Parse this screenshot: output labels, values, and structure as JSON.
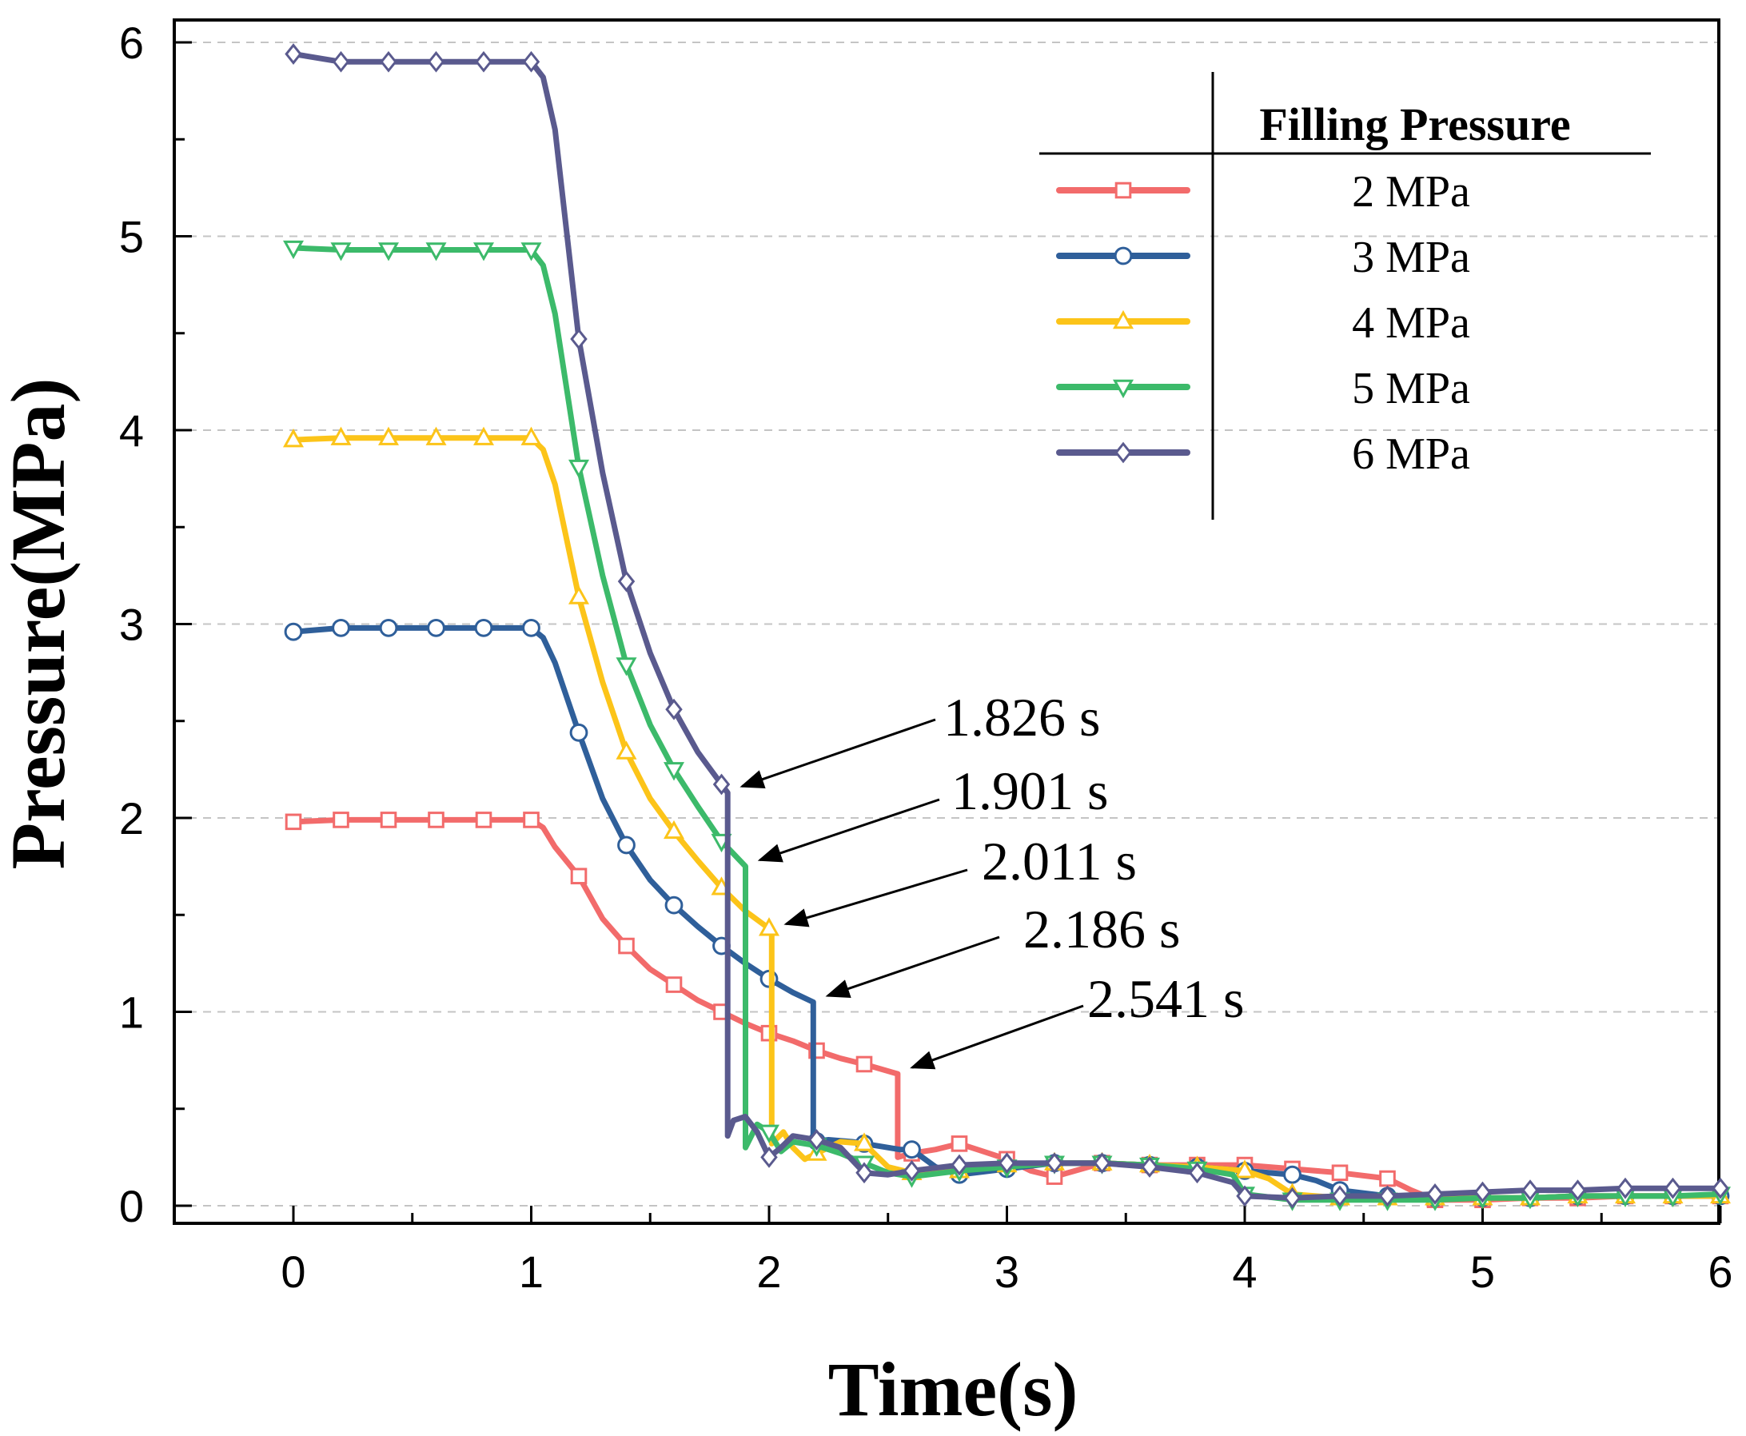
{
  "chart_data": {
    "type": "line",
    "title": "",
    "xlabel": "Time(s)",
    "ylabel": "Pressure(MPa)",
    "xlim": [
      -0.5,
      6
    ],
    "ylim": [
      -0.1,
      6.1
    ],
    "xticks": [
      0,
      1,
      2,
      3,
      4,
      5,
      6
    ],
    "yticks": [
      0,
      1,
      2,
      3,
      4,
      5,
      6
    ],
    "grid": "horizontal dashed",
    "legend": {
      "title": "Filling Pressure",
      "position": "top-right"
    },
    "series": [
      {
        "name": "2 MPa",
        "color": "#f26b6b",
        "marker": "square",
        "drop_time": 2.541,
        "x": [
          0,
          0.2,
          0.4,
          0.6,
          0.8,
          1.0,
          1.05,
          1.1,
          1.2,
          1.3,
          1.4,
          1.5,
          1.6,
          1.7,
          1.8,
          1.9,
          2.0,
          2.1,
          2.2,
          2.3,
          2.4,
          2.541,
          2.541,
          2.6,
          2.7,
          2.8,
          2.9,
          3.0,
          3.1,
          3.2,
          3.4,
          3.6,
          3.8,
          4.0,
          4.2,
          4.4,
          4.6,
          4.7,
          4.8,
          5.0,
          5.2,
          5.4,
          5.6,
          5.8,
          6.0
        ],
        "y": [
          1.98,
          1.99,
          1.99,
          1.99,
          1.99,
          1.99,
          1.95,
          1.85,
          1.7,
          1.48,
          1.34,
          1.22,
          1.14,
          1.06,
          1.0,
          0.94,
          0.89,
          0.85,
          0.8,
          0.76,
          0.73,
          0.68,
          0.25,
          0.27,
          0.29,
          0.32,
          0.28,
          0.24,
          0.18,
          0.15,
          0.22,
          0.21,
          0.21,
          0.21,
          0.19,
          0.17,
          0.14,
          0.08,
          0.03,
          0.03,
          0.04,
          0.04,
          0.05,
          0.05,
          0.05
        ],
        "markers_x": [
          0,
          0.2,
          0.4,
          0.6,
          0.8,
          1.0,
          1.2,
          1.4,
          1.6,
          1.8,
          2.0,
          2.2,
          2.4,
          2.6,
          2.8,
          3.0,
          3.2,
          3.4,
          3.6,
          3.8,
          4.0,
          4.2,
          4.4,
          4.6,
          4.8,
          5.0,
          5.2,
          5.4,
          5.6,
          5.8,
          6.0
        ]
      },
      {
        "name": "3 MPa",
        "color": "#2f5f9a",
        "marker": "circle",
        "drop_time": 2.186,
        "x": [
          0,
          0.2,
          0.4,
          0.6,
          0.8,
          1.0,
          1.05,
          1.1,
          1.2,
          1.3,
          1.4,
          1.5,
          1.6,
          1.7,
          1.8,
          1.9,
          2.0,
          2.1,
          2.186,
          2.186,
          2.25,
          2.35,
          2.45,
          2.55,
          2.6,
          2.7,
          2.8,
          3.0,
          3.2,
          3.4,
          3.6,
          3.8,
          4.0,
          4.2,
          4.3,
          4.4,
          4.6,
          4.8,
          5.0,
          5.2,
          5.4,
          5.6,
          5.8,
          6.0
        ],
        "y": [
          2.96,
          2.98,
          2.98,
          2.98,
          2.98,
          2.98,
          2.93,
          2.8,
          2.44,
          2.1,
          1.86,
          1.68,
          1.55,
          1.44,
          1.34,
          1.25,
          1.17,
          1.1,
          1.05,
          0.33,
          0.34,
          0.33,
          0.31,
          0.29,
          0.29,
          0.2,
          0.16,
          0.19,
          0.22,
          0.22,
          0.21,
          0.2,
          0.18,
          0.16,
          0.13,
          0.08,
          0.05,
          0.04,
          0.04,
          0.04,
          0.05,
          0.05,
          0.05,
          0.05
        ],
        "markers_x": [
          0,
          0.2,
          0.4,
          0.6,
          0.8,
          1.0,
          1.2,
          1.4,
          1.6,
          1.8,
          2.0,
          2.2,
          2.4,
          2.6,
          2.8,
          3.0,
          3.2,
          3.4,
          3.6,
          3.8,
          4.0,
          4.2,
          4.4,
          4.6,
          4.8,
          5.0,
          5.2,
          5.4,
          5.6,
          5.8,
          6.0
        ]
      },
      {
        "name": "4 MPa",
        "color": "#fcc419",
        "marker": "triangle-up",
        "drop_time": 2.011,
        "x": [
          0,
          0.2,
          0.4,
          0.6,
          0.8,
          1.0,
          1.05,
          1.1,
          1.2,
          1.3,
          1.4,
          1.5,
          1.6,
          1.7,
          1.8,
          1.9,
          2.011,
          2.011,
          2.06,
          2.1,
          2.15,
          2.2,
          2.3,
          2.4,
          2.5,
          2.6,
          2.8,
          3.0,
          3.2,
          3.4,
          3.6,
          3.8,
          4.0,
          4.1,
          4.2,
          4.4,
          4.6,
          4.8,
          5.0,
          5.2,
          5.4,
          5.6,
          5.8,
          6.0
        ],
        "y": [
          3.95,
          3.96,
          3.96,
          3.96,
          3.96,
          3.96,
          3.9,
          3.72,
          3.14,
          2.7,
          2.34,
          2.1,
          1.93,
          1.78,
          1.64,
          1.52,
          1.42,
          0.32,
          0.38,
          0.3,
          0.24,
          0.27,
          0.33,
          0.32,
          0.2,
          0.17,
          0.18,
          0.21,
          0.22,
          0.22,
          0.21,
          0.2,
          0.18,
          0.14,
          0.06,
          0.04,
          0.04,
          0.04,
          0.04,
          0.04,
          0.05,
          0.05,
          0.05,
          0.05
        ],
        "markers_x": [
          0,
          0.2,
          0.4,
          0.6,
          0.8,
          1.0,
          1.2,
          1.4,
          1.6,
          1.8,
          2.0,
          2.2,
          2.4,
          2.6,
          2.8,
          3.0,
          3.2,
          3.4,
          3.6,
          3.8,
          4.0,
          4.2,
          4.4,
          4.6,
          4.8,
          5.0,
          5.2,
          5.4,
          5.6,
          5.8,
          6.0
        ]
      },
      {
        "name": "5 MPa",
        "color": "#3cba6a",
        "marker": "triangle-down",
        "drop_time": 1.901,
        "x": [
          0,
          0.2,
          0.4,
          0.6,
          0.8,
          1.0,
          1.05,
          1.1,
          1.2,
          1.3,
          1.4,
          1.5,
          1.6,
          1.7,
          1.8,
          1.901,
          1.901,
          1.95,
          2.0,
          2.05,
          2.1,
          2.2,
          2.3,
          2.4,
          2.5,
          2.6,
          2.8,
          3.0,
          3.2,
          3.4,
          3.6,
          3.8,
          3.95,
          4.0,
          4.2,
          4.4,
          4.6,
          4.8,
          5.0,
          5.2,
          5.4,
          5.6,
          5.8,
          6.0
        ],
        "y": [
          4.94,
          4.93,
          4.93,
          4.93,
          4.93,
          4.93,
          4.85,
          4.6,
          3.81,
          3.25,
          2.79,
          2.48,
          2.25,
          2.06,
          1.88,
          1.75,
          0.3,
          0.42,
          0.38,
          0.28,
          0.33,
          0.31,
          0.27,
          0.22,
          0.17,
          0.15,
          0.18,
          0.2,
          0.22,
          0.22,
          0.21,
          0.19,
          0.16,
          0.06,
          0.03,
          0.03,
          0.03,
          0.03,
          0.04,
          0.04,
          0.05,
          0.05,
          0.05,
          0.06
        ],
        "markers_x": [
          0,
          0.2,
          0.4,
          0.6,
          0.8,
          1.0,
          1.2,
          1.4,
          1.6,
          1.8,
          2.0,
          2.2,
          2.4,
          2.6,
          2.8,
          3.0,
          3.2,
          3.4,
          3.6,
          3.8,
          4.0,
          4.2,
          4.4,
          4.6,
          4.8,
          5.0,
          5.2,
          5.4,
          5.6,
          5.8,
          6.0
        ]
      },
      {
        "name": "6 MPa",
        "color": "#5a5a8e",
        "marker": "diamond",
        "drop_time": 1.826,
        "x": [
          0,
          0.2,
          0.4,
          0.6,
          0.8,
          1.0,
          1.05,
          1.1,
          1.2,
          1.3,
          1.4,
          1.5,
          1.6,
          1.7,
          1.826,
          1.826,
          1.85,
          1.9,
          1.95,
          2.0,
          2.05,
          2.1,
          2.2,
          2.3,
          2.4,
          2.5,
          2.6,
          2.8,
          3.0,
          3.2,
          3.4,
          3.6,
          3.8,
          3.95,
          4.0,
          4.2,
          4.4,
          4.6,
          4.8,
          5.0,
          5.2,
          5.4,
          5.6,
          5.8,
          6.0
        ],
        "y": [
          5.94,
          5.9,
          5.9,
          5.9,
          5.9,
          5.9,
          5.82,
          5.55,
          4.47,
          3.78,
          3.22,
          2.85,
          2.56,
          2.34,
          2.13,
          0.36,
          0.44,
          0.46,
          0.38,
          0.25,
          0.3,
          0.36,
          0.34,
          0.3,
          0.17,
          0.16,
          0.18,
          0.21,
          0.22,
          0.22,
          0.22,
          0.2,
          0.17,
          0.12,
          0.05,
          0.04,
          0.05,
          0.05,
          0.06,
          0.07,
          0.08,
          0.08,
          0.09,
          0.09,
          0.09
        ],
        "markers_x": [
          0,
          0.2,
          0.4,
          0.6,
          0.8,
          1.0,
          1.2,
          1.4,
          1.6,
          1.8,
          2.0,
          2.2,
          2.4,
          2.6,
          2.8,
          3.0,
          3.2,
          3.4,
          3.6,
          3.8,
          4.0,
          4.2,
          4.4,
          4.6,
          4.8,
          5.0,
          5.2,
          5.4,
          5.6,
          5.8,
          6.0
        ]
      }
    ],
    "annotations": [
      {
        "text": "1.826 s",
        "point": [
          1.826,
          2.13
        ]
      },
      {
        "text": "1.901 s",
        "point": [
          1.901,
          1.75
        ]
      },
      {
        "text": "2.011 s",
        "point": [
          2.011,
          1.42
        ]
      },
      {
        "text": "2.186 s",
        "point": [
          2.186,
          1.05
        ]
      },
      {
        "text": "2.541 s",
        "point": [
          2.541,
          0.68
        ]
      }
    ]
  }
}
